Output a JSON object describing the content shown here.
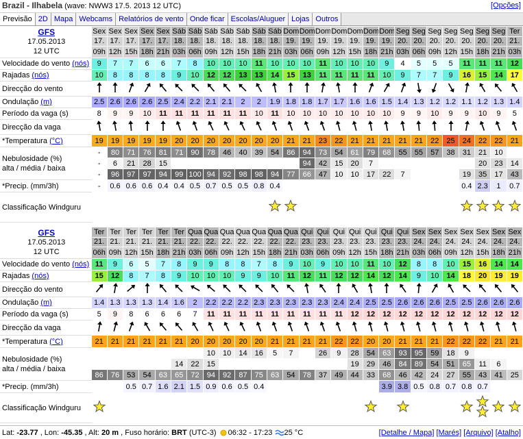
{
  "header": {
    "title": "Brazil - Ilhabela",
    "subtitle": "(wave: NWW3 17.5. 2013 12 UTC)",
    "options": "[Opções]"
  },
  "tabs": [
    "Previsão",
    "2D",
    "Mapa",
    "Webcams",
    "Relatórios de vento",
    "Onde ficar",
    "Escolas/Aluguer",
    "Lojas",
    "Outros"
  ],
  "row_labels": {
    "wind": "Velocidade do vento",
    "wind_unit": "(nós)",
    "gust": "Rajadas",
    "gust_unit": "(nós)",
    "wind_dir": "Direcção do vento",
    "wave": "Ondulação",
    "wave_unit": "(m)",
    "period": "Período da vaga (s)",
    "wave_dir": "Direcção da vaga",
    "temp": "*Temperatura",
    "temp_unit": "(°C)",
    "cloud": "Nebulosidade (%)",
    "cloud_sub": "alta / média / baixa",
    "precip": "*Precip. (mm/3h)",
    "rating": "Classificação Windguru"
  },
  "blocks": [
    {
      "model": "GFS",
      "date": "17.05.2013",
      "run": "12 UTC",
      "days": [
        "Sex",
        "Sex",
        "Sex",
        "Sex",
        "Sex",
        "Sáb",
        "Sáb",
        "Sáb",
        "Sáb",
        "Sáb",
        "Sáb",
        "Sáb",
        "Dom",
        "Dom",
        "Dom",
        "Dom",
        "Dom",
        "Dom",
        "Dom",
        "Seg",
        "Seg",
        "Seg",
        "Seg",
        "Seg",
        "Seg",
        "Seg",
        "Ter"
      ],
      "dates": [
        "17.",
        "17.",
        "17.",
        "17.",
        "17.",
        "18.",
        "18.",
        "18.",
        "18.",
        "18.",
        "18.",
        "18.",
        "19.",
        "19.",
        "19.",
        "19.",
        "19.",
        "19.",
        "19.",
        "20.",
        "20.",
        "20.",
        "20.",
        "20.",
        "20.",
        "20.",
        "21."
      ],
      "hours": [
        "09h",
        "12h",
        "15h",
        "18h",
        "21h",
        "03h",
        "06h",
        "09h",
        "12h",
        "15h",
        "18h",
        "21h",
        "03h",
        "06h",
        "09h",
        "12h",
        "15h",
        "18h",
        "21h",
        "03h",
        "06h",
        "09h",
        "12h",
        "15h",
        "18h",
        "21h",
        "03h"
      ],
      "wind": [
        9,
        7,
        7,
        6,
        6,
        7,
        8,
        10,
        10,
        10,
        11,
        10,
        10,
        10,
        11,
        10,
        10,
        10,
        9,
        4,
        5,
        5,
        5,
        11,
        11,
        11,
        12
      ],
      "gust": [
        10,
        8,
        8,
        8,
        8,
        9,
        10,
        12,
        12,
        13,
        13,
        14,
        15,
        13,
        11,
        11,
        11,
        11,
        10,
        9,
        7,
        7,
        9,
        16,
        15,
        14,
        17
      ],
      "wind_dir": [
        0,
        0,
        20,
        30,
        320,
        315,
        315,
        320,
        320,
        315,
        330,
        350,
        0,
        0,
        10,
        350,
        0,
        20,
        30,
        20,
        170,
        200,
        150,
        10,
        330,
        320,
        330
      ],
      "wave": [
        2.5,
        2.6,
        2.6,
        2.6,
        2.5,
        2.4,
        2.2,
        2.1,
        2.1,
        2,
        2,
        1.9,
        1.8,
        1.8,
        1.7,
        1.7,
        1.6,
        1.6,
        1.5,
        1.4,
        1.3,
        1.2,
        1.2,
        1.1,
        1.2,
        1.3,
        1.4
      ],
      "period": [
        8,
        9,
        9,
        10,
        11,
        11,
        11,
        11,
        11,
        11,
        10,
        11,
        10,
        10,
        10,
        10,
        10,
        10,
        10,
        9,
        9,
        10,
        9,
        9,
        10,
        9,
        5
      ],
      "wave_dir": [
        350,
        350,
        355,
        0,
        0,
        340,
        340,
        335,
        335,
        335,
        335,
        340,
        340,
        340,
        340,
        345,
        345,
        350,
        350,
        350,
        355,
        355,
        0,
        10,
        340,
        340,
        340
      ],
      "temp": [
        19,
        19,
        19,
        19,
        19,
        20,
        20,
        20,
        20,
        20,
        20,
        20,
        21,
        21,
        23,
        22,
        21,
        21,
        21,
        21,
        21,
        22,
        25,
        24,
        22,
        22,
        21
      ],
      "cloud_high": [
        "-",
        80,
        71,
        76,
        81,
        71,
        90,
        78,
        46,
        40,
        39,
        54,
        86,
        94,
        73,
        54,
        61,
        79,
        68,
        55,
        55,
        57,
        38,
        31,
        21,
        10,
        null
      ],
      "cloud_mid": [
        "-",
        6,
        21,
        28,
        15,
        null,
        null,
        null,
        null,
        null,
        null,
        null,
        null,
        94,
        42,
        15,
        20,
        7,
        null,
        null,
        null,
        null,
        null,
        null,
        20,
        23,
        14
      ],
      "cloud_low": [
        "-",
        96,
        97,
        97,
        94,
        99,
        100,
        94,
        92,
        98,
        98,
        94,
        77,
        66,
        47,
        10,
        10,
        17,
        22,
        7,
        null,
        null,
        null,
        19,
        35,
        17,
        43
      ],
      "precip": [
        "-",
        0.6,
        0.6,
        0.6,
        0.4,
        0.4,
        0.5,
        0.7,
        0.5,
        0.5,
        0.8,
        0.4,
        null,
        null,
        null,
        null,
        null,
        null,
        null,
        null,
        null,
        null,
        null,
        0.4,
        2.3,
        1,
        0.7
      ],
      "rating": [
        null,
        null,
        null,
        null,
        null,
        null,
        null,
        null,
        null,
        null,
        null,
        1,
        1,
        null,
        null,
        null,
        null,
        null,
        null,
        null,
        null,
        null,
        null,
        1,
        1,
        1,
        1
      ]
    },
    {
      "model": "GFS",
      "date": "17.05.2013",
      "run": "12 UTC",
      "days": [
        "Ter",
        "Ter",
        "Ter",
        "Ter",
        "Ter",
        "Ter",
        "Qua",
        "Qua",
        "Qua",
        "Qua",
        "Qua",
        "Qua",
        "Qua",
        "Qui",
        "Qui",
        "Qui",
        "Qui",
        "Qui",
        "Qui",
        "Qui",
        "Sex",
        "Sex",
        "Sex",
        "Sex",
        "Sex",
        "Sex",
        "Sex"
      ],
      "dates": [
        "21.",
        "21.",
        "21.",
        "21.",
        "21.",
        "21.",
        "22.",
        "22.",
        "22.",
        "22.",
        "22.",
        "22.",
        "22.",
        "23.",
        "23.",
        "23.",
        "23.",
        "23.",
        "23.",
        "23.",
        "24.",
        "24.",
        "24.",
        "24.",
        "24.",
        "24.",
        "24."
      ],
      "hours": [
        "06h",
        "09h",
        "12h",
        "15h",
        "18h",
        "21h",
        "03h",
        "06h",
        "09h",
        "12h",
        "15h",
        "18h",
        "21h",
        "03h",
        "06h",
        "09h",
        "12h",
        "15h",
        "18h",
        "21h",
        "03h",
        "06h",
        "09h",
        "12h",
        "15h",
        "18h",
        "21h"
      ],
      "wind": [
        11,
        9,
        6,
        5,
        7,
        8,
        9,
        9,
        8,
        8,
        7,
        8,
        9,
        10,
        9,
        10,
        10,
        11,
        10,
        12,
        8,
        8,
        10,
        15,
        16,
        14,
        14
      ],
      "gust": [
        15,
        12,
        8,
        7,
        8,
        9,
        10,
        10,
        10,
        9,
        9,
        10,
        11,
        12,
        11,
        12,
        12,
        14,
        12,
        14,
        9,
        10,
        14,
        18,
        20,
        19,
        19
      ],
      "wind_dir": [
        40,
        10,
        50,
        0,
        320,
        315,
        300,
        310,
        315,
        315,
        315,
        320,
        315,
        350,
        325,
        0,
        330,
        350,
        0,
        325,
        5,
        30,
        330,
        315,
        320,
        320,
        320
      ],
      "wave": [
        1.4,
        1.3,
        1.3,
        1.3,
        1.4,
        1.6,
        2,
        2.2,
        2.2,
        2.2,
        2.3,
        2.3,
        2.3,
        2.3,
        2.3,
        2.4,
        2.4,
        2.5,
        2.5,
        2.6,
        2.6,
        2.6,
        2.5,
        2.5,
        2.6,
        2.6,
        2.6
      ],
      "period": [
        5,
        9,
        8,
        6,
        6,
        6,
        7,
        11,
        11,
        11,
        11,
        11,
        11,
        11,
        11,
        11,
        12,
        12,
        12,
        12,
        12,
        12,
        12,
        12,
        12,
        12,
        12
      ],
      "wave_dir": [
        10,
        15,
        20,
        330,
        320,
        320,
        330,
        335,
        335,
        335,
        340,
        340,
        340,
        340,
        340,
        340,
        345,
        345,
        345,
        345,
        345,
        345,
        345,
        345,
        345,
        345,
        345
      ],
      "temp": [
        21,
        21,
        21,
        21,
        21,
        21,
        20,
        20,
        20,
        20,
        20,
        21,
        21,
        21,
        21,
        22,
        22,
        20,
        20,
        21,
        21,
        21,
        22,
        22,
        22,
        21,
        21
      ],
      "cloud_high": [
        null,
        null,
        null,
        null,
        null,
        null,
        null,
        10,
        10,
        14,
        16,
        5,
        7,
        null,
        26,
        9,
        28,
        54,
        63,
        93,
        95,
        59,
        18,
        9,
        null,
        null,
        null
      ],
      "cloud_mid": [
        null,
        null,
        null,
        null,
        null,
        14,
        22,
        15,
        null,
        null,
        null,
        null,
        null,
        null,
        null,
        null,
        19,
        29,
        46,
        84,
        89,
        54,
        51,
        65,
        11,
        6,
        null
      ],
      "cloud_low": [
        86,
        76,
        53,
        54,
        63,
        65,
        72,
        94,
        92,
        87,
        75,
        63,
        54,
        78,
        37,
        49,
        44,
        33,
        68,
        46,
        42,
        24,
        27,
        55,
        43,
        41,
        25
      ],
      "precip": [
        null,
        null,
        0.5,
        0.7,
        1.6,
        2.1,
        1.5,
        0.9,
        0.6,
        0.5,
        0.4,
        null,
        null,
        null,
        null,
        null,
        null,
        null,
        3.9,
        3.8,
        0.5,
        0.8,
        0.7,
        0.8,
        0.7,
        null,
        null
      ],
      "rating": [
        1,
        null,
        null,
        null,
        null,
        null,
        null,
        null,
        null,
        null,
        null,
        null,
        null,
        null,
        null,
        null,
        null,
        1,
        null,
        1,
        null,
        null,
        null,
        1,
        2,
        1,
        1
      ]
    }
  ],
  "footer": {
    "lat_label": "Lat:",
    "lat": "-23.77",
    "lon_label": ", Lon:",
    "lon": "-45.35",
    "alt_label": ", Alt:",
    "alt": "20 m",
    "tz_label": ", Fuso horário:",
    "tz": "BRT",
    "utc": "(UTC-3)",
    "sun": "06:32 - 17:23",
    "water": "25 °C",
    "links": [
      "[Detalhe / Mapa]",
      "[Marés]",
      "[Arquivo]",
      "[Atalho]"
    ]
  }
}
